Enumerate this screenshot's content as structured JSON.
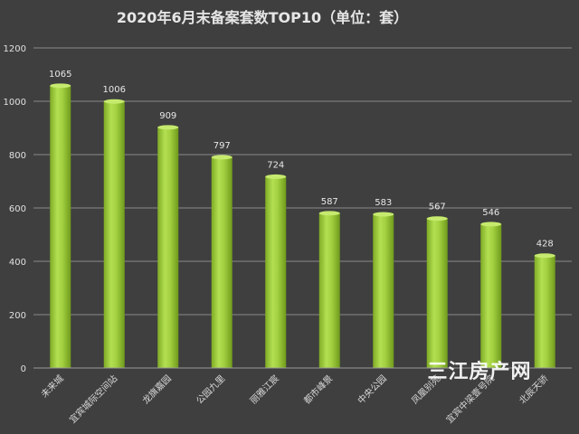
{
  "chart_data": {
    "type": "bar",
    "title": "2020年6月末备案套数TOP10（单位：套）",
    "categories": [
      "未来城",
      "宜宾城际空间站",
      "龙旗嘉园",
      "公园九里",
      "丽雅江宸",
      "都市峰景",
      "中央公园",
      "凤凰别苑",
      "宜宾中梁壹号院",
      "北辰天骄"
    ],
    "values": [
      1065,
      1006,
      909,
      797,
      724,
      587,
      583,
      567,
      546,
      428
    ],
    "ylim": [
      0,
      1200
    ],
    "yticks": [
      0,
      200,
      400,
      600,
      800,
      1000,
      1200
    ],
    "grid": true,
    "legend": "none",
    "xlabel": "",
    "ylabel": "",
    "bar_color": "#8fc031",
    "bar_highlight": "#c6ea6e"
  },
  "watermark": "三江房产网"
}
